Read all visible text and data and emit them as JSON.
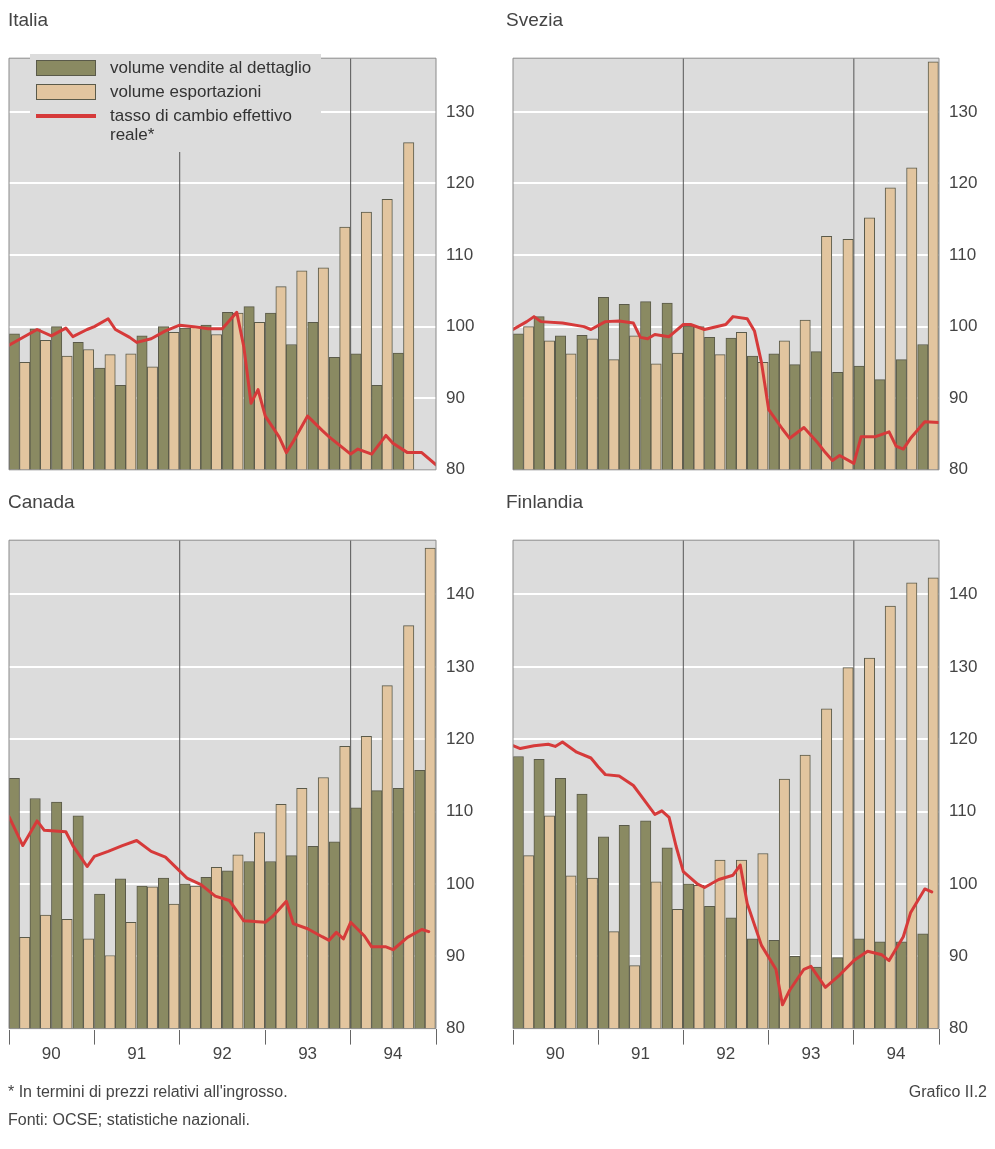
{
  "chart_data": [
    {
      "type": "bar",
      "title": "Italia",
      "legend": "top left",
      "grid": "y",
      "tick_labels": "y",
      "x": [
        "1990-02-15",
        "1990-05-15",
        "1990-08-15",
        "1990-11-15",
        "1991-02-15",
        "1991-05-15",
        "1991-08-15",
        "1991-11-15",
        "1992-02-15",
        "1992-05-15",
        "1992-08-15",
        "1992-11-15",
        "1993-02-15",
        "1993-05-15",
        "1993-08-15",
        "1993-11-15",
        "1994-02-15",
        "1994-05-15",
        "1994-08-15"
      ],
      "xlim": [
        "1990-01",
        "1995-01"
      ],
      "ylim": [
        80,
        137.5
      ],
      "yticks": [
        80,
        90,
        100,
        110,
        120,
        130
      ],
      "ref_lines": [
        {
          "axis": "x",
          "value": "1992-01",
          "color": "#555555"
        },
        {
          "axis": "x",
          "value": "1994-01",
          "color": "#555555"
        }
      ],
      "series": [
        {
          "name": "volume vendite al dettaglio",
          "color": "#8a8a62",
          "values": [
            99.0,
            99.7,
            100.0,
            97.8,
            94.2,
            91.8,
            98.7,
            100.0,
            99.8,
            100.2,
            102.0,
            102.8,
            101.9,
            97.5,
            100.6,
            95.7,
            96.2,
            91.8,
            96.3
          ]
        },
        {
          "name": "volume esportazioni",
          "color": "#e2c59f",
          "values": [
            95.0,
            98.1,
            95.9,
            96.8,
            96.1,
            96.2,
            94.4,
            99.2,
            100.0,
            98.9,
            101.9,
            100.6,
            105.6,
            107.8,
            108.2,
            113.9,
            116.0,
            117.8,
            125.7
          ]
        },
        {
          "type": "line",
          "name": "tasso di cambio effettivo reale*",
          "color": "#d63a3a",
          "x": [
            "1990-01",
            "1990-05",
            "1990-07",
            "1990-09",
            "1990-10",
            "1990-12",
            "1991-01",
            "1991-03",
            "1991-04",
            "1991-06",
            "1991-07",
            "1991-09",
            "1991-11",
            "1992-01",
            "1992-03",
            "1992-05",
            "1992-07",
            "1992-09",
            "1992-10",
            "1992-11",
            "1992-12",
            "1993-01",
            "1993-03",
            "1993-04",
            "1993-05",
            "1993-07",
            "1993-09",
            "1993-10",
            "1994-01",
            "1994-02",
            "1994-04",
            "1994-06",
            "1994-07",
            "1994-09",
            "1994-11",
            "1995-01"
          ],
          "values": [
            97.4,
            99.6,
            98.7,
            99.8,
            98.6,
            99.6,
            100.0,
            101.1,
            99.6,
            98.5,
            97.8,
            98.3,
            99.4,
            100.2,
            100.0,
            99.7,
            99.7,
            102.0,
            97.2,
            89.3,
            91.2,
            87.5,
            84.6,
            82.4,
            84.0,
            87.5,
            85.5,
            84.6,
            82.2,
            82.9,
            82.2,
            84.8,
            83.7,
            82.4,
            82.4,
            80.7
          ]
        }
      ]
    },
    {
      "type": "bar",
      "title": "Svezia",
      "grid": "y",
      "tick_labels": "y",
      "x": [
        "1990-02-15",
        "1990-05-15",
        "1990-08-15",
        "1990-11-15",
        "1991-02-15",
        "1991-05-15",
        "1991-08-15",
        "1991-11-15",
        "1992-02-15",
        "1992-05-15",
        "1992-08-15",
        "1992-11-15",
        "1993-02-15",
        "1993-05-15",
        "1993-08-15",
        "1993-11-15",
        "1994-02-15",
        "1994-05-15",
        "1994-08-15",
        "1994-11-15"
      ],
      "xlim": [
        "1990-01",
        "1995-01"
      ],
      "ylim": [
        80,
        137.5
      ],
      "yticks": [
        80,
        90,
        100,
        110,
        120,
        130
      ],
      "ref_lines": [
        {
          "axis": "x",
          "value": "1992-01",
          "color": "#555555"
        },
        {
          "axis": "x",
          "value": "1994-01",
          "color": "#555555"
        }
      ],
      "series": [
        {
          "color": "#8a8a62",
          "values": [
            99.0,
            101.4,
            98.7,
            98.8,
            104.1,
            103.1,
            103.5,
            103.3,
            100.1,
            98.5,
            98.4,
            95.9,
            96.2,
            94.7,
            96.5,
            93.6,
            94.5,
            92.6,
            95.4,
            97.5
          ]
        },
        {
          "color": "#e2c59f",
          "values": [
            100.0,
            98.0,
            96.2,
            98.3,
            95.4,
            98.7,
            94.8,
            96.3,
            100.0,
            96.1,
            99.2,
            95.0,
            98.0,
            100.9,
            112.6,
            112.2,
            115.2,
            119.4,
            122.2,
            137.0
          ]
        },
        {
          "type": "line",
          "color": "#d63a3a",
          "x": [
            "1990-01",
            "1990-03",
            "1990-04",
            "1990-05",
            "1990-08",
            "1990-11",
            "1990-12",
            "1991-02",
            "1991-04",
            "1991-06",
            "1991-07",
            "1991-08",
            "1991-09",
            "1991-11",
            "1992-01",
            "1992-02",
            "1992-04",
            "1992-07",
            "1992-08",
            "1992-10",
            "1992-11",
            "1992-12",
            "1993-01",
            "1993-03",
            "1993-04",
            "1993-06",
            "1993-08",
            "1993-09",
            "1993-10",
            "1993-11",
            "1994-01",
            "1994-02",
            "1994-04",
            "1994-06",
            "1994-07",
            "1994-08",
            "1994-09",
            "1994-11",
            "1995-01"
          ],
          "values": [
            99.6,
            100.7,
            101.4,
            100.7,
            100.5,
            100.0,
            99.6,
            100.7,
            100.8,
            100.5,
            98.5,
            98.3,
            98.9,
            98.6,
            100.3,
            100.3,
            99.6,
            100.3,
            101.4,
            101.1,
            99.4,
            95.0,
            88.4,
            85.7,
            84.4,
            85.9,
            83.7,
            82.4,
            81.3,
            82.0,
            80.9,
            84.6,
            84.6,
            85.3,
            83.3,
            82.9,
            84.4,
            86.7,
            86.6
          ]
        }
      ]
    },
    {
      "type": "bar",
      "title": "Canada",
      "grid": "y",
      "annotations": [
        "* In termini di prezzi relativi all'ingrosso.",
        "Fonti: OCSE; statistiche nazionali."
      ],
      "x": [
        "1990-02-15",
        "1990-05-15",
        "1990-08-15",
        "1990-11-15",
        "1991-02-15",
        "1991-05-15",
        "1991-08-15",
        "1991-11-15",
        "1992-02-15",
        "1992-05-15",
        "1992-08-15",
        "1992-11-15",
        "1993-02-15",
        "1993-05-15",
        "1993-08-15",
        "1993-11-15",
        "1994-02-15",
        "1994-05-15",
        "1994-08-15",
        "1994-11-15"
      ],
      "xlim": [
        "1990-01",
        "1995-01"
      ],
      "xticks": [
        {
          "value": "1990-01",
          "label": null
        },
        {
          "value": "1990-07",
          "label": "90"
        },
        {
          "value": "1991-01",
          "label": null
        },
        {
          "value": "1991-07",
          "label": "91"
        },
        {
          "value": "1992-01",
          "label": null
        },
        {
          "value": "1992-07",
          "label": "92"
        },
        {
          "value": "1993-01",
          "label": null
        },
        {
          "value": "1993-07",
          "label": "93"
        },
        {
          "value": "1994-01",
          "label": null
        },
        {
          "value": "1994-07",
          "label": "94"
        },
        {
          "value": "1995-01",
          "label": null
        }
      ],
      "ylim": [
        80,
        147.5
      ],
      "yticks": [
        80,
        90,
        100,
        110,
        120,
        130,
        140
      ],
      "ref_lines": [
        {
          "axis": "x",
          "value": "1992-01",
          "color": "#555555"
        },
        {
          "axis": "x",
          "value": "1994-01",
          "color": "#555555"
        }
      ],
      "series": [
        {
          "color": "#8a8a62",
          "values": [
            114.6,
            111.8,
            111.3,
            109.4,
            98.6,
            100.7,
            99.7,
            100.8,
            100.0,
            100.9,
            101.8,
            103.1,
            103.1,
            103.9,
            105.2,
            105.8,
            110.5,
            112.9,
            113.2,
            115.7
          ]
        },
        {
          "color": "#e2c59f",
          "values": [
            92.6,
            95.7,
            95.1,
            92.4,
            90.1,
            94.7,
            99.6,
            97.2,
            99.7,
            102.3,
            104.0,
            107.1,
            111.0,
            113.2,
            114.7,
            119.0,
            120.4,
            127.4,
            135.7,
            146.4
          ]
        },
        {
          "type": "line",
          "color": "#d63a3a",
          "x": [
            "1990-01",
            "1990-03",
            "1990-05",
            "1990-06",
            "1990-09",
            "1990-10",
            "1990-12",
            "1991-01",
            "1991-03",
            "1991-05",
            "1991-07",
            "1991-09",
            "1991-11",
            "1992-02",
            "1992-04",
            "1992-06",
            "1992-08",
            "1992-10",
            "1993-01",
            "1993-02",
            "1993-04",
            "1993-05",
            "1993-07",
            "1993-09",
            "1993-10",
            "1993-11",
            "1993-12",
            "1994-01",
            "1994-03",
            "1994-04",
            "1994-06",
            "1994-07",
            "1994-09",
            "1994-11",
            "1994-12"
          ],
          "values": [
            109.3,
            105.3,
            108.7,
            107.4,
            107.2,
            105.3,
            102.4,
            103.8,
            104.5,
            105.3,
            106.0,
            104.5,
            103.7,
            100.8,
            99.9,
            98.3,
            97.7,
            94.9,
            94.7,
            95.5,
            97.6,
            94.5,
            93.8,
            92.7,
            92.2,
            93.3,
            92.4,
            94.7,
            92.8,
            91.3,
            91.3,
            90.9,
            92.6,
            93.7,
            93.4
          ]
        }
      ]
    },
    {
      "type": "bar",
      "title": "Finlandia",
      "grid": "y",
      "annotations": [
        "Grafico II.2"
      ],
      "x": [
        "1990-02-15",
        "1990-05-15",
        "1990-08-15",
        "1990-11-15",
        "1991-02-15",
        "1991-05-15",
        "1991-08-15",
        "1991-11-15",
        "1992-02-15",
        "1992-05-15",
        "1992-08-15",
        "1992-11-15",
        "1993-02-15",
        "1993-05-15",
        "1993-08-15",
        "1993-11-15",
        "1994-02-15",
        "1994-05-15",
        "1994-08-15",
        "1994-11-15"
      ],
      "xlim": [
        "1990-01",
        "1995-01"
      ],
      "xticks": [
        {
          "value": "1990-01",
          "label": null
        },
        {
          "value": "1990-07",
          "label": "90"
        },
        {
          "value": "1991-01",
          "label": null
        },
        {
          "value": "1991-07",
          "label": "91"
        },
        {
          "value": "1992-01",
          "label": null
        },
        {
          "value": "1992-07",
          "label": "92"
        },
        {
          "value": "1993-01",
          "label": null
        },
        {
          "value": "1993-07",
          "label": "93"
        },
        {
          "value": "1994-01",
          "label": null
        },
        {
          "value": "1994-07",
          "label": "94"
        },
        {
          "value": "1995-01",
          "label": null
        }
      ],
      "ylim": [
        80,
        147.5
      ],
      "yticks": [
        80,
        90,
        100,
        110,
        120,
        130,
        140
      ],
      "ref_lines": [
        {
          "axis": "x",
          "value": "1992-01",
          "color": "#555555"
        },
        {
          "axis": "x",
          "value": "1994-01",
          "color": "#555555"
        }
      ],
      "series": [
        {
          "color": "#8a8a62",
          "values": [
            117.6,
            117.2,
            114.6,
            112.4,
            106.5,
            108.1,
            108.7,
            105.0,
            100.0,
            96.9,
            95.3,
            92.4,
            92.2,
            90.0,
            88.5,
            89.8,
            92.4,
            92.0,
            92.0,
            93.1
          ]
        },
        {
          "color": "#e2c59f",
          "values": [
            103.9,
            109.4,
            101.1,
            100.8,
            93.4,
            88.7,
            100.3,
            96.5,
            99.8,
            103.3,
            103.3,
            104.2,
            114.5,
            117.8,
            124.2,
            129.9,
            131.2,
            138.4,
            141.6,
            142.3
          ]
        },
        {
          "type": "line",
          "color": "#d63a3a",
          "x": [
            "1990-01",
            "1990-02",
            "1990-04",
            "1990-06",
            "1990-07",
            "1990-08",
            "1990-10",
            "1990-12",
            "1991-01",
            "1991-02",
            "1991-04",
            "1991-06",
            "1991-07",
            "1991-09",
            "1991-10",
            "1991-11",
            "1991-12",
            "1992-01",
            "1992-03",
            "1992-04",
            "1992-06",
            "1992-08",
            "1992-09",
            "1992-10",
            "1992-12",
            "1993-02",
            "1993-03",
            "1993-04",
            "1993-06",
            "1993-07",
            "1993-09",
            "1993-11",
            "1994-01",
            "1994-03",
            "1994-05",
            "1994-06",
            "1994-08",
            "1994-09",
            "1994-11",
            "1994-12"
          ],
          "values": [
            119.1,
            118.7,
            119.1,
            119.3,
            119.0,
            119.6,
            118.2,
            117.4,
            116.2,
            115.1,
            114.9,
            113.6,
            112.3,
            109.6,
            110.1,
            109.2,
            105.2,
            101.7,
            100.0,
            99.5,
            100.6,
            101.2,
            102.6,
            97.3,
            91.5,
            88.2,
            83.3,
            85.3,
            88.2,
            88.6,
            85.7,
            87.4,
            89.4,
            90.7,
            90.2,
            89.4,
            92.7,
            96.0,
            99.3,
            98.9
          ]
        }
      ]
    }
  ]
}
